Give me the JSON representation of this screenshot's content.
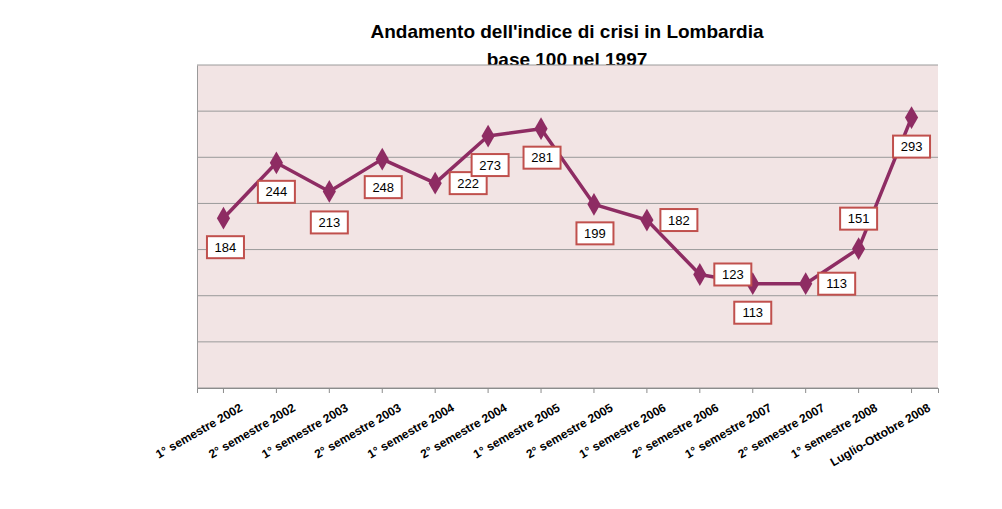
{
  "chart_data": {
    "type": "line",
    "title": "Andamento dell'indice di crisi in Lombardia",
    "subtitle": "base 100 nel 1997",
    "categories": [
      "1° semestre 2002",
      "2° semestre 2002",
      "1° semestre 2003",
      "2° semestre 2003",
      "1° semestre 2004",
      "2° semestre 2004",
      "1° semestre 2005",
      "2° semestre 2005",
      "1° semestre 2006",
      "2° semestre 2006",
      "1° semestre 2007",
      "2° semestre 2007",
      "1° semestre 2008",
      "Luglio-Ottobre 2008"
    ],
    "values": [
      184,
      244,
      213,
      248,
      222,
      273,
      281,
      199,
      182,
      123,
      113,
      113,
      151,
      293
    ],
    "color": "#8e2c63",
    "marker": "diamond",
    "ylim": [
      0,
      350
    ],
    "yticks": [
      0,
      50,
      100,
      150,
      200,
      250,
      300,
      350
    ],
    "grid": true,
    "data_labels": true,
    "tick_labels": "x"
  }
}
